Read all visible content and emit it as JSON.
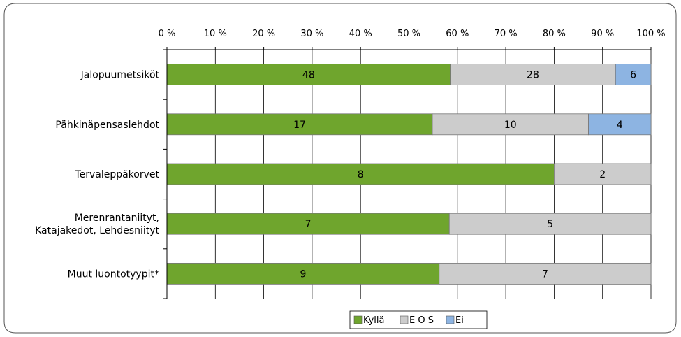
{
  "chart_data": {
    "type": "bar",
    "orientation": "horizontal",
    "stacked": true,
    "normalized_percent": true,
    "title": "",
    "xlabel": "",
    "ylabel": "",
    "xlim": [
      0,
      100
    ],
    "x_ticks": [
      "0 %",
      "10 %",
      "20 %",
      "30 %",
      "40 %",
      "50 %",
      "60 %",
      "70 %",
      "80 %",
      "90 %",
      "100 %"
    ],
    "grid": true,
    "legend_position": "bottom",
    "categories": [
      [
        "Jalopuumetsiköt"
      ],
      [
        "Pähkinäpensaslehdot"
      ],
      [
        "Tervaleppäkorvet"
      ],
      [
        "Merenrantaniityt,",
        "Katajakedot, Lehdesniityt"
      ],
      [
        "Muut luontotyypit*"
      ]
    ],
    "series": [
      {
        "name": "Kyllä",
        "color": "#6fa52d",
        "values": [
          48,
          17,
          8,
          7,
          9
        ]
      },
      {
        "name": "E O S",
        "color": "#cccccc",
        "values": [
          28,
          10,
          2,
          5,
          7
        ]
      },
      {
        "name": "Ei",
        "color": "#8db4e2",
        "values": [
          6,
          4,
          0,
          0,
          0
        ]
      }
    ]
  }
}
